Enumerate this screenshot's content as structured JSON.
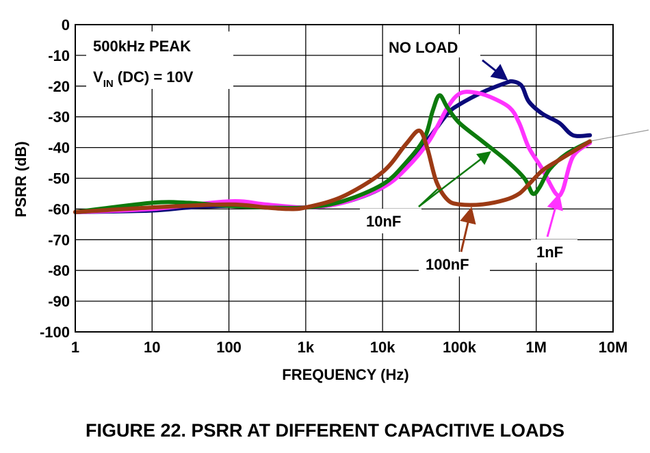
{
  "chart_data": {
    "type": "line",
    "title": "",
    "xlabel": "FREQUENCY (Hz)",
    "ylabel": "PSRR (dB)",
    "xscale": "log",
    "xlim": [
      1,
      10000000
    ],
    "ylim": [
      -100,
      0
    ],
    "x_ticks": [
      1,
      10,
      100,
      1000,
      10000,
      100000,
      1000000,
      10000000
    ],
    "x_tick_labels": [
      "1",
      "10",
      "100",
      "1k",
      "10k",
      "100k",
      "1M",
      "10M"
    ],
    "y_ticks": [
      0,
      -10,
      -20,
      -30,
      -40,
      -50,
      -60,
      -70,
      -80,
      -90,
      -100
    ],
    "y_tick_labels": [
      "0",
      "-10",
      "-20",
      "-30",
      "-40",
      "-50",
      "-60",
      "-70",
      "-80",
      "-90",
      "-100"
    ],
    "grid": true,
    "notes": {
      "line1": "500kHz PEAK",
      "line2_main": "V",
      "line2_sub": "IN",
      "line2_rest": " (DC) = 10V"
    },
    "series": [
      {
        "name": "NO LOAD",
        "color": "#0a0a7a",
        "points": [
          [
            1,
            -61
          ],
          [
            10,
            -60.5
          ],
          [
            30,
            -59.5
          ],
          [
            100,
            -59
          ],
          [
            300,
            -59.5
          ],
          [
            1000,
            -59.5
          ],
          [
            3000,
            -58
          ],
          [
            10000,
            -53
          ],
          [
            20000,
            -46
          ],
          [
            40000,
            -37
          ],
          [
            70000,
            -29
          ],
          [
            100000,
            -26
          ],
          [
            200000,
            -22
          ],
          [
            400000,
            -19
          ],
          [
            500000,
            -18.5
          ],
          [
            650000,
            -20
          ],
          [
            800000,
            -25
          ],
          [
            1200000,
            -29
          ],
          [
            2000000,
            -32
          ],
          [
            3000000,
            -36
          ],
          [
            5000000,
            -36
          ]
        ]
      },
      {
        "name": "1nF",
        "color": "#ff33ff",
        "points": [
          [
            1,
            -61
          ],
          [
            10,
            -60
          ],
          [
            100,
            -57.5
          ],
          [
            300,
            -58.5
          ],
          [
            1000,
            -59.5
          ],
          [
            3000,
            -58
          ],
          [
            10000,
            -53
          ],
          [
            20000,
            -47
          ],
          [
            40000,
            -38
          ],
          [
            70000,
            -27
          ],
          [
            100000,
            -22.5
          ],
          [
            150000,
            -22
          ],
          [
            250000,
            -23.5
          ],
          [
            450000,
            -27
          ],
          [
            600000,
            -32
          ],
          [
            800000,
            -40
          ],
          [
            1200000,
            -47
          ],
          [
            1800000,
            -55
          ],
          [
            2200000,
            -54
          ],
          [
            3000000,
            -43
          ],
          [
            5000000,
            -38.5
          ]
        ]
      },
      {
        "name": "10nF",
        "color": "#0c7a0c",
        "points": [
          [
            1,
            -61
          ],
          [
            10,
            -58
          ],
          [
            30,
            -58
          ],
          [
            100,
            -59
          ],
          [
            300,
            -59.5
          ],
          [
            1000,
            -59.5
          ],
          [
            3000,
            -57.5
          ],
          [
            10000,
            -52
          ],
          [
            20000,
            -45
          ],
          [
            35000,
            -37
          ],
          [
            45000,
            -28
          ],
          [
            55000,
            -23
          ],
          [
            70000,
            -27
          ],
          [
            100000,
            -32
          ],
          [
            200000,
            -38
          ],
          [
            400000,
            -44
          ],
          [
            700000,
            -50
          ],
          [
            900000,
            -55
          ],
          [
            1100000,
            -53
          ],
          [
            1500000,
            -47
          ],
          [
            2500000,
            -42
          ],
          [
            5000000,
            -38
          ]
        ]
      },
      {
        "name": "100nF",
        "color": "#9c3a14",
        "points": [
          [
            1,
            -61
          ],
          [
            10,
            -59.5
          ],
          [
            100,
            -58.5
          ],
          [
            300,
            -59.5
          ],
          [
            600,
            -60
          ],
          [
            1000,
            -59.5
          ],
          [
            3000,
            -56
          ],
          [
            10000,
            -48
          ],
          [
            20000,
            -39
          ],
          [
            30000,
            -34.5
          ],
          [
            38000,
            -40
          ],
          [
            50000,
            -51
          ],
          [
            70000,
            -57
          ],
          [
            100000,
            -58.5
          ],
          [
            200000,
            -58.5
          ],
          [
            400000,
            -57
          ],
          [
            600000,
            -55
          ],
          [
            800000,
            -52
          ],
          [
            1200000,
            -47.5
          ],
          [
            2000000,
            -44
          ],
          [
            5000000,
            -38
          ]
        ]
      }
    ],
    "annotations": [
      {
        "text": "NO LOAD",
        "series": "NO LOAD"
      },
      {
        "text": "10nF",
        "series": "10nF"
      },
      {
        "text": "100nF",
        "series": "100nF"
      },
      {
        "text": "1nF",
        "series": "1nF"
      }
    ]
  },
  "caption": "FIGURE 22.  PSRR AT DIFFERENT CAPACITIVE LOADS"
}
